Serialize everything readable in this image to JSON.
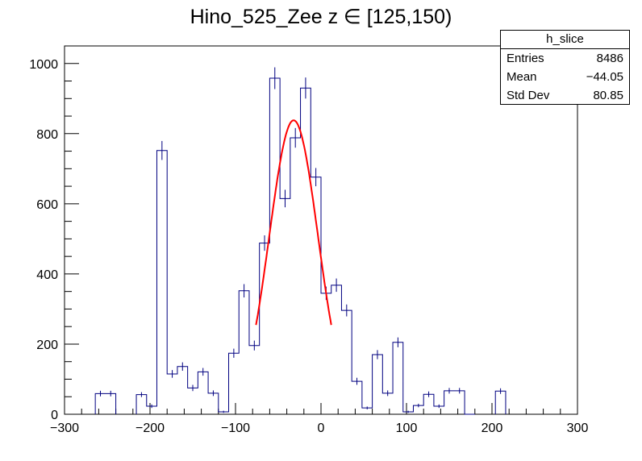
{
  "title": "Hino_525_Zee z  ∈ [125,150)",
  "stats_box": {
    "name": "h_slice",
    "rows": [
      {
        "label": "Entries",
        "value": "8486"
      },
      {
        "label": "Mean",
        "value": "−44.05"
      },
      {
        "label": "Std Dev",
        "value": "80.85"
      }
    ]
  },
  "chart_data": {
    "type": "bar",
    "subtype": "step-histogram-with-errors",
    "xlim": [
      -300,
      300
    ],
    "ylim": [
      0,
      1050
    ],
    "x_ticks": [
      -300,
      -200,
      -100,
      0,
      100,
      200,
      300
    ],
    "x_tick_labels": [
      "−300",
      "−200",
      "−100",
      "0",
      "100",
      "200",
      "300"
    ],
    "y_ticks": [
      0,
      200,
      400,
      600,
      800,
      1000
    ],
    "y_tick_labels": [
      "0",
      "200",
      "400",
      "600",
      "800",
      "1000"
    ],
    "bin_width": 12,
    "bin_starts": [
      -264,
      -252,
      -216,
      -204,
      -192,
      -180,
      -168,
      -156,
      -144,
      -132,
      -120,
      -108,
      -96,
      -84,
      -72,
      -60,
      -48,
      -36,
      -24,
      -12,
      0,
      12,
      24,
      36,
      48,
      60,
      72,
      84,
      96,
      108,
      120,
      132,
      144,
      156,
      168,
      204
    ],
    "values": [
      59,
      59,
      56,
      23,
      752,
      115,
      136,
      75,
      121,
      60,
      7,
      174,
      352,
      196,
      488,
      958,
      615,
      788,
      930,
      676,
      345,
      368,
      296,
      94,
      18,
      170,
      60,
      205,
      7,
      25,
      57,
      23,
      67,
      67,
      0,
      66
    ],
    "errors": [
      8,
      8,
      7,
      5,
      27,
      11,
      12,
      9,
      11,
      8,
      3,
      13,
      19,
      14,
      22,
      31,
      25,
      28,
      30,
      26,
      19,
      19,
      17,
      10,
      4,
      13,
      8,
      14,
      3,
      5,
      8,
      5,
      8,
      8,
      0,
      8
    ],
    "line_color": "#000080",
    "fit": {
      "type": "gaussian",
      "color": "#ff0000",
      "amplitude": 838,
      "mean": -32,
      "sigma": 28.5,
      "x_range": [
        -76,
        12
      ]
    }
  }
}
